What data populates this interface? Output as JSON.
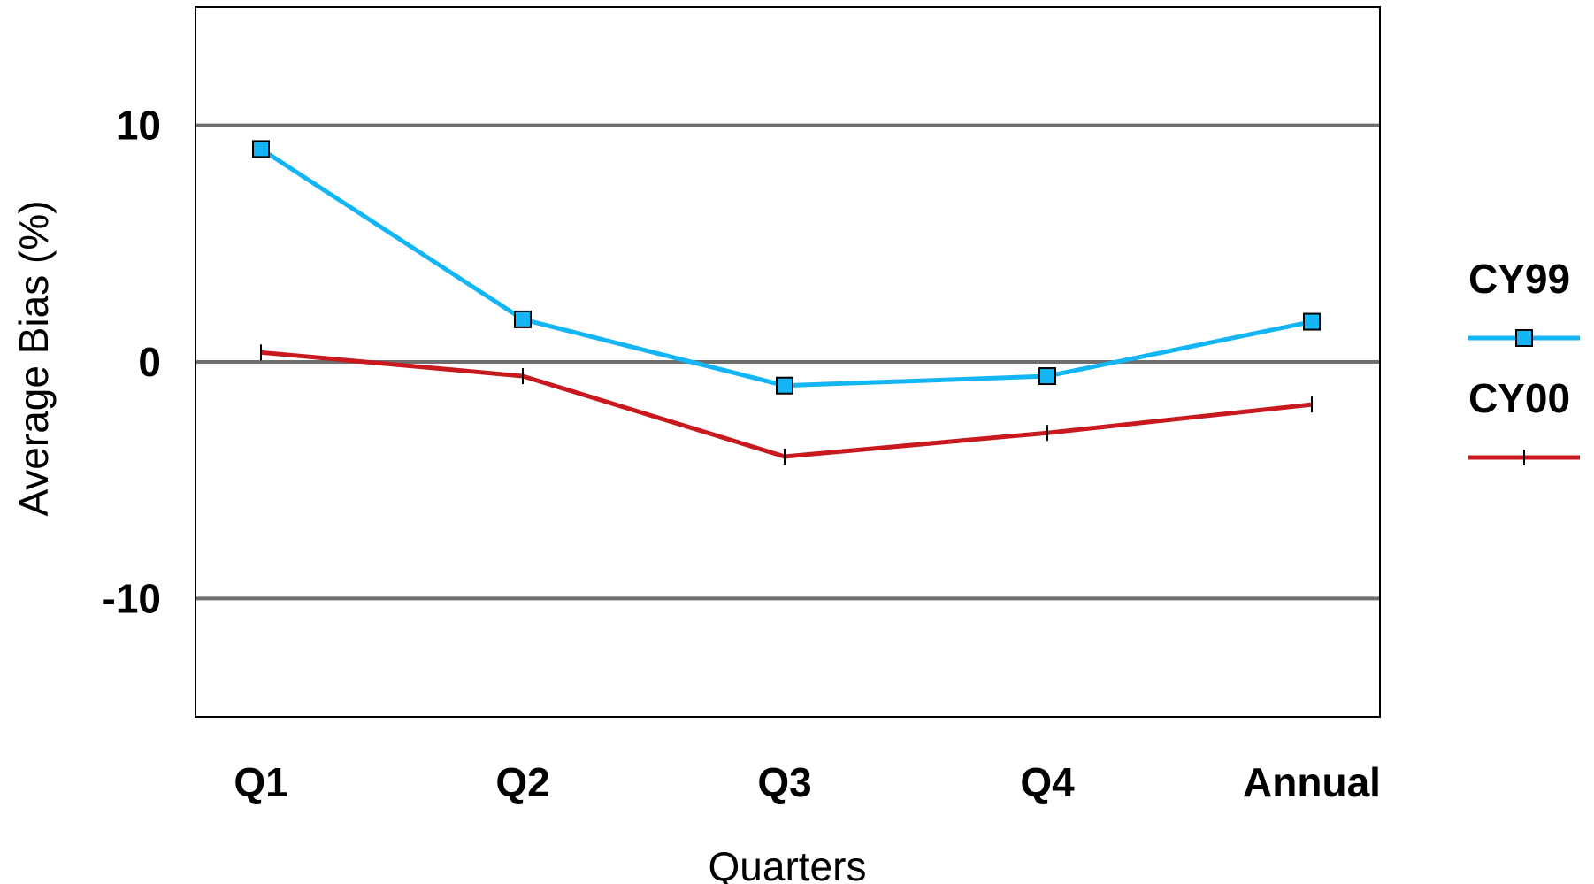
{
  "chart_data": {
    "type": "line",
    "title": "",
    "xlabel": "Quarters",
    "ylabel": "Average Bias (%)",
    "categories": [
      "Q1",
      "Q2",
      "Q3",
      "Q4",
      "Annual"
    ],
    "ylim": [
      -15,
      15
    ],
    "yticks": [
      -10,
      0,
      10
    ],
    "ytick_labels": [
      "-10",
      "0",
      "10"
    ],
    "grid": "horizontal at labeled ticks",
    "legend_position": "right",
    "series": [
      {
        "name": "CY99",
        "values": [
          9.0,
          1.8,
          -1.0,
          -0.6,
          1.7
        ],
        "color": "#13b5f5",
        "marker": "square"
      },
      {
        "name": "CY00",
        "values": [
          0.4,
          -0.6,
          -4.0,
          -3.0,
          -1.8
        ],
        "color": "#c8191e",
        "marker": "tick"
      }
    ]
  }
}
